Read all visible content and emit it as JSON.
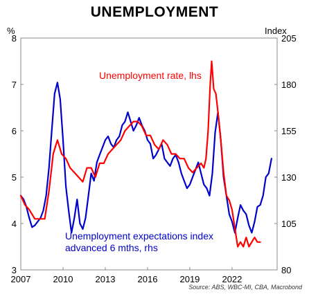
{
  "title": "UNEMPLOYMENT",
  "source": "Source: ABS, WBC-MI, CBA, Macrobond",
  "chart_data": {
    "type": "line",
    "title": "UNEMPLOYMENT",
    "left_axis": {
      "unit": "%",
      "range": [
        3,
        8
      ],
      "ticks": [
        "3",
        "4",
        "5",
        "6",
        "7",
        "8"
      ]
    },
    "right_axis": {
      "unit": "Index",
      "range": [
        80,
        205
      ],
      "ticks": [
        "80",
        "105",
        "130",
        "155",
        "180",
        "205"
      ]
    },
    "x_axis": {
      "range": [
        2007,
        2025.2
      ],
      "ticks": [
        "2007",
        "2010",
        "2013",
        "2016",
        "2019",
        "2022"
      ]
    },
    "grid": false,
    "series": [
      {
        "name": "Unemployment rate, lhs",
        "axis": "left",
        "color": "#ff0000",
        "x": [
          2007.0,
          2007.3,
          2007.6,
          2008.0,
          2008.3,
          2008.7,
          2009.0,
          2009.3,
          2009.6,
          2009.9,
          2010.2,
          2010.5,
          2010.8,
          2011.1,
          2011.4,
          2011.7,
          2012.0,
          2012.3,
          2012.6,
          2012.9,
          2013.2,
          2013.5,
          2013.8,
          2014.1,
          2014.4,
          2014.7,
          2015.0,
          2015.3,
          2015.6,
          2015.9,
          2016.2,
          2016.5,
          2016.8,
          2017.1,
          2017.4,
          2017.7,
          2018.0,
          2018.3,
          2018.6,
          2018.9,
          2019.2,
          2019.5,
          2019.8,
          2020.0,
          2020.15,
          2020.3,
          2020.45,
          2020.55,
          2020.7,
          2020.85,
          2021.0,
          2021.2,
          2021.4,
          2021.6,
          2021.8,
          2022.0,
          2022.2,
          2022.4,
          2022.6,
          2022.8,
          2023.0,
          2023.2,
          2023.4,
          2023.6,
          2023.8,
          2024.0
        ],
        "values": [
          4.6,
          4.4,
          4.3,
          4.1,
          4.1,
          4.1,
          4.7,
          5.5,
          5.8,
          5.5,
          5.4,
          5.2,
          5.1,
          5.0,
          4.9,
          5.2,
          5.2,
          5.0,
          5.3,
          5.3,
          5.5,
          5.6,
          5.7,
          5.8,
          6.0,
          6.1,
          6.2,
          6.2,
          6.1,
          5.9,
          5.9,
          5.7,
          5.6,
          5.8,
          5.7,
          5.5,
          5.5,
          5.4,
          5.4,
          5.2,
          5.1,
          5.2,
          5.3,
          5.2,
          5.4,
          6.0,
          7.0,
          7.5,
          6.9,
          6.8,
          6.4,
          5.8,
          5.1,
          4.6,
          4.5,
          4.3,
          3.9,
          3.5,
          3.6,
          3.5,
          3.7,
          3.5,
          3.6,
          3.7,
          3.6,
          3.6
        ]
      },
      {
        "name": "Unemployment expectations index, advanced 6 mths, rhs",
        "axis": "right",
        "color": "#0000cc",
        "x": [
          2007.0,
          2007.2,
          2007.4,
          2007.6,
          2007.8,
          2008.0,
          2008.2,
          2008.4,
          2008.6,
          2008.8,
          2009.0,
          2009.2,
          2009.4,
          2009.6,
          2009.8,
          2010.0,
          2010.2,
          2010.4,
          2010.6,
          2010.8,
          2011.0,
          2011.2,
          2011.4,
          2011.6,
          2011.8,
          2012.0,
          2012.2,
          2012.4,
          2012.6,
          2012.8,
          2013.0,
          2013.2,
          2013.4,
          2013.6,
          2013.8,
          2014.0,
          2014.2,
          2014.4,
          2014.6,
          2014.8,
          2015.0,
          2015.2,
          2015.4,
          2015.6,
          2015.8,
          2016.0,
          2016.2,
          2016.4,
          2016.6,
          2016.8,
          2017.0,
          2017.2,
          2017.4,
          2017.6,
          2017.8,
          2018.0,
          2018.2,
          2018.4,
          2018.6,
          2018.8,
          2019.0,
          2019.2,
          2019.4,
          2019.6,
          2019.8,
          2020.0,
          2020.2,
          2020.4,
          2020.6,
          2020.8,
          2021.0,
          2021.2,
          2021.4,
          2021.6,
          2021.8,
          2022.0,
          2022.2,
          2022.4,
          2022.6,
          2022.8,
          2023.0,
          2023.2,
          2023.4,
          2023.6,
          2023.8,
          2024.0,
          2024.2,
          2024.4,
          2024.6,
          2024.8
        ],
        "values": [
          120,
          118,
          114,
          108,
          103,
          104,
          106,
          108,
          112,
          120,
          135,
          155,
          175,
          181,
          172,
          150,
          125,
          112,
          100,
          108,
          118,
          105,
          102,
          108,
          120,
          132,
          128,
          138,
          142,
          146,
          150,
          152,
          148,
          146,
          150,
          152,
          158,
          160,
          165,
          160,
          155,
          158,
          162,
          158,
          155,
          150,
          148,
          140,
          142,
          145,
          148,
          140,
          138,
          136,
          140,
          142,
          138,
          132,
          128,
          124,
          126,
          130,
          134,
          138,
          132,
          126,
          124,
          120,
          132,
          154,
          165,
          150,
          130,
          120,
          110,
          106,
          100,
          108,
          115,
          112,
          110,
          104,
          100,
          106,
          114,
          115,
          120,
          130,
          132,
          140
        ]
      }
    ],
    "annotations": [
      "Unemployment rate, lhs",
      "Unemployment expectations index, advanced 6 mths, rhs"
    ]
  }
}
